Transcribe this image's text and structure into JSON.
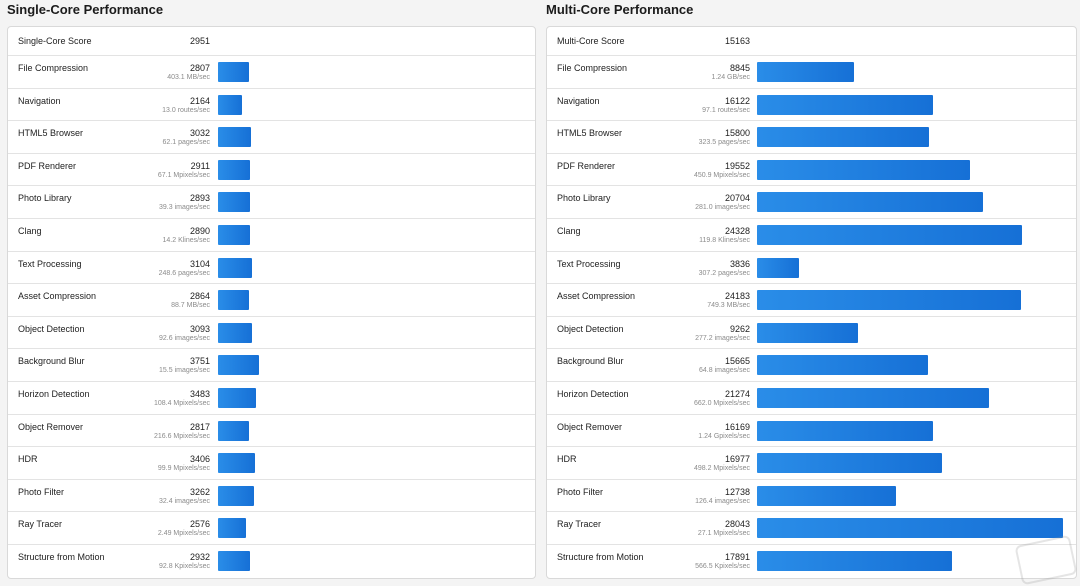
{
  "single": {
    "title": "Single-Core Performance",
    "score_label": "Single-Core Score",
    "score_value": "2951",
    "max_score": 28043,
    "tests": [
      {
        "name": "File Compression",
        "score": 2807,
        "rate": "403.1 MB/sec"
      },
      {
        "name": "Navigation",
        "score": 2164,
        "rate": "13.0 routes/sec"
      },
      {
        "name": "HTML5 Browser",
        "score": 3032,
        "rate": "62.1 pages/sec"
      },
      {
        "name": "PDF Renderer",
        "score": 2911,
        "rate": "67.1 Mpixels/sec"
      },
      {
        "name": "Photo Library",
        "score": 2893,
        "rate": "39.3 images/sec"
      },
      {
        "name": "Clang",
        "score": 2890,
        "rate": "14.2 Klines/sec"
      },
      {
        "name": "Text Processing",
        "score": 3104,
        "rate": "248.6 pages/sec"
      },
      {
        "name": "Asset Compression",
        "score": 2864,
        "rate": "88.7 MB/sec"
      },
      {
        "name": "Object Detection",
        "score": 3093,
        "rate": "92.6 images/sec"
      },
      {
        "name": "Background Blur",
        "score": 3751,
        "rate": "15.5 images/sec"
      },
      {
        "name": "Horizon Detection",
        "score": 3483,
        "rate": "108.4 Mpixels/sec"
      },
      {
        "name": "Object Remover",
        "score": 2817,
        "rate": "216.6 Mpixels/sec"
      },
      {
        "name": "HDR",
        "score": 3406,
        "rate": "99.9 Mpixels/sec"
      },
      {
        "name": "Photo Filter",
        "score": 3262,
        "rate": "32.4 images/sec"
      },
      {
        "name": "Ray Tracer",
        "score": 2576,
        "rate": "2.49 Mpixels/sec"
      },
      {
        "name": "Structure from Motion",
        "score": 2932,
        "rate": "92.8 Kpixels/sec"
      }
    ]
  },
  "multi": {
    "title": "Multi-Core Performance",
    "score_label": "Multi-Core Score",
    "score_value": "15163",
    "max_score": 28043,
    "tests": [
      {
        "name": "File Compression",
        "score": 8845,
        "rate": "1.24 GB/sec"
      },
      {
        "name": "Navigation",
        "score": 16122,
        "rate": "97.1 routes/sec"
      },
      {
        "name": "HTML5 Browser",
        "score": 15800,
        "rate": "323.5 pages/sec"
      },
      {
        "name": "PDF Renderer",
        "score": 19552,
        "rate": "450.9 Mpixels/sec"
      },
      {
        "name": "Photo Library",
        "score": 20704,
        "rate": "281.0 images/sec"
      },
      {
        "name": "Clang",
        "score": 24328,
        "rate": "119.8 Klines/sec"
      },
      {
        "name": "Text Processing",
        "score": 3836,
        "rate": "307.2 pages/sec"
      },
      {
        "name": "Asset Compression",
        "score": 24183,
        "rate": "749.3 MB/sec"
      },
      {
        "name": "Object Detection",
        "score": 9262,
        "rate": "277.2 images/sec"
      },
      {
        "name": "Background Blur",
        "score": 15665,
        "rate": "64.8 images/sec"
      },
      {
        "name": "Horizon Detection",
        "score": 21274,
        "rate": "662.0 Mpixels/sec"
      },
      {
        "name": "Object Remover",
        "score": 16169,
        "rate": "1.24 Gpixels/sec"
      },
      {
        "name": "HDR",
        "score": 16977,
        "rate": "498.2 Mpixels/sec"
      },
      {
        "name": "Photo Filter",
        "score": 12738,
        "rate": "126.4 images/sec"
      },
      {
        "name": "Ray Tracer",
        "score": 28043,
        "rate": "27.1 Mpixels/sec"
      },
      {
        "name": "Structure from Motion",
        "score": 17891,
        "rate": "566.5 Kpixels/sec"
      }
    ]
  },
  "colors": {
    "bar": "#1f7fe0",
    "rate_text": "#8b8b8b"
  },
  "watermark": "聚超值"
}
